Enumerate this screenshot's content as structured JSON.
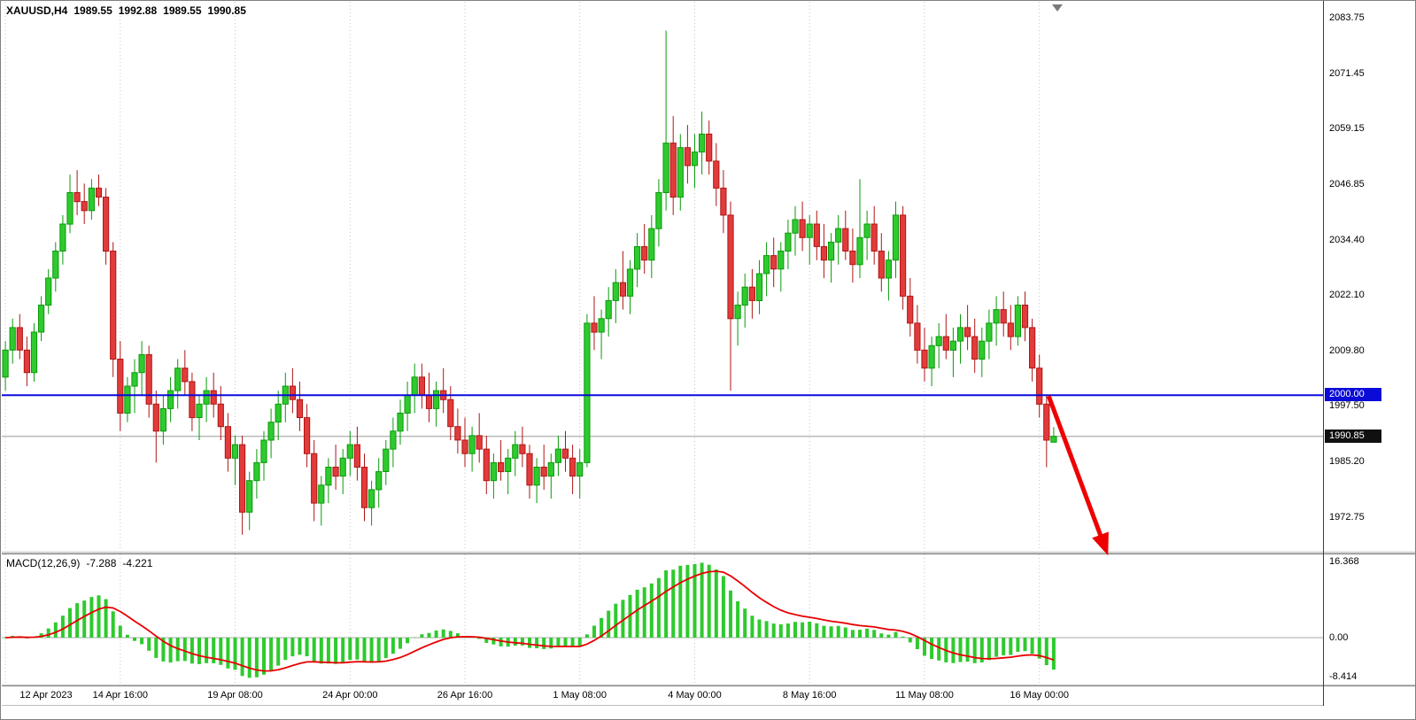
{
  "header": {
    "symbol": "XAUUSD,H4",
    "open": "1989.55",
    "high": "1992.88",
    "low": "1989.55",
    "close": "1990.85"
  },
  "macd_readout": {
    "label": "MACD(12,26,9)",
    "main": "-7.288",
    "signal": "-4.221"
  },
  "chart_data": [
    {
      "type": "candlestick",
      "symbol": "XAUUSD",
      "timeframe": "H4",
      "ylim": [
        1965.4,
        2087.4
      ],
      "y_tick_labels": [
        "2083.75",
        "2071.45",
        "2059.15",
        "2046.85",
        "2034.40",
        "2022.10",
        "2009.80",
        "1997.50",
        "1985.20",
        "1972.75"
      ],
      "x_tick_indices": [
        0,
        16,
        32,
        48,
        64,
        80,
        96,
        112,
        128,
        144
      ],
      "x_tick_labels": [
        "12 Apr 2023",
        "14 Apr 16:00",
        "19 Apr 08:00",
        "24 Apr 00:00",
        "26 Apr 16:00",
        "1 May 08:00",
        "4 May 00:00",
        "8 May 16:00",
        "11 May 08:00",
        "16 May 00:00"
      ],
      "visible_bar_slots": 184,
      "colors": {
        "up": "#2eca2e",
        "up_border": "#0a9a0a",
        "down": "#e23b3b",
        "down_border": "#b01515",
        "grid": "#c6c6c6"
      },
      "hline": {
        "value": 2000.0,
        "label": "2000.00",
        "color": "#0b0bd8"
      },
      "current_price": {
        "value": 1990.85,
        "label": "1990.85",
        "line_color": "#9a9a9a",
        "badge_color": "#101010"
      },
      "arrow": {
        "color": "#ee0000",
        "from": {
          "bar": 145.3,
          "price": 1999.8
        },
        "to": {
          "bar": 152.6,
          "price": 1968.5
        }
      },
      "candles": [
        [
          2004,
          2012,
          2001,
          2010
        ],
        [
          2010,
          2017,
          2007,
          2015
        ],
        [
          2015,
          2018,
          2008,
          2010
        ],
        [
          2010,
          2013,
          2002,
          2005
        ],
        [
          2005,
          2016,
          2003,
          2014
        ],
        [
          2014,
          2022,
          2012,
          2020
        ],
        [
          2020,
          2028,
          2018,
          2026
        ],
        [
          2026,
          2034,
          2023,
          2032
        ],
        [
          2032,
          2040,
          2029,
          2038
        ],
        [
          2038,
          2049,
          2036,
          2045
        ],
        [
          2045,
          2050,
          2040,
          2043
        ],
        [
          2043,
          2047,
          2038,
          2041
        ],
        [
          2041,
          2048,
          2039,
          2046
        ],
        [
          2046,
          2049,
          2042,
          2044
        ],
        [
          2044,
          2046,
          2029,
          2032
        ],
        [
          2032,
          2034,
          2004,
          2008
        ],
        [
          2008,
          2012,
          1992,
          1996
        ],
        [
          1996,
          2004,
          1994,
          2002
        ],
        [
          2002,
          2008,
          1996,
          2005
        ],
        [
          2005,
          2012,
          2000,
          2009
        ],
        [
          2009,
          2011,
          1995,
          1998
        ],
        [
          1998,
          2001,
          1985,
          1992
        ],
        [
          1992,
          2000,
          1989,
          1997
        ],
        [
          1997,
          2004,
          1994,
          2001
        ],
        [
          2001,
          2008,
          1997,
          2006
        ],
        [
          2006,
          2010,
          2000,
          2003
        ],
        [
          2003,
          2005,
          1992,
          1995
        ],
        [
          1995,
          2000,
          1990,
          1998
        ],
        [
          1998,
          2004,
          1994,
          2001
        ],
        [
          2001,
          2005,
          1995,
          1998
        ],
        [
          1998,
          2002,
          1990,
          1993
        ],
        [
          1993,
          1996,
          1983,
          1986
        ],
        [
          1986,
          1991,
          1980,
          1989
        ],
        [
          1989,
          1991,
          1969,
          1974
        ],
        [
          1974,
          1983,
          1970,
          1981
        ],
        [
          1981,
          1988,
          1977,
          1985
        ],
        [
          1985,
          1992,
          1981,
          1990
        ],
        [
          1990,
          1997,
          1986,
          1994
        ],
        [
          1994,
          2001,
          1990,
          1998
        ],
        [
          1998,
          2005,
          1994,
          2002
        ],
        [
          2002,
          2006,
          1996,
          1999
        ],
        [
          1999,
          2003,
          1992,
          1995
        ],
        [
          1995,
          1998,
          1984,
          1987
        ],
        [
          1987,
          1990,
          1972,
          1976
        ],
        [
          1976,
          1982,
          1971,
          1980
        ],
        [
          1980,
          1986,
          1976,
          1984
        ],
        [
          1984,
          1989,
          1979,
          1982
        ],
        [
          1982,
          1988,
          1978,
          1986
        ],
        [
          1986,
          1992,
          1982,
          1989
        ],
        [
          1989,
          1993,
          1981,
          1984
        ],
        [
          1984,
          1987,
          1972,
          1975
        ],
        [
          1975,
          1981,
          1971,
          1979
        ],
        [
          1979,
          1986,
          1975,
          1983
        ],
        [
          1983,
          1990,
          1980,
          1988
        ],
        [
          1988,
          1995,
          1984,
          1992
        ],
        [
          1992,
          1999,
          1989,
          1996
        ],
        [
          1996,
          2003,
          1992,
          2000
        ],
        [
          2000,
          2007,
          1996,
          2004
        ],
        [
          2004,
          2007,
          1997,
          2000
        ],
        [
          2000,
          2005,
          1994,
          1997
        ],
        [
          1997,
          2003,
          1993,
          2001
        ],
        [
          2001,
          2006,
          1996,
          1999
        ],
        [
          1999,
          2002,
          1990,
          1993
        ],
        [
          1993,
          1997,
          1987,
          1990
        ],
        [
          1990,
          1995,
          1984,
          1987
        ],
        [
          1987,
          1993,
          1983,
          1991
        ],
        [
          1991,
          1996,
          1985,
          1988
        ],
        [
          1988,
          1991,
          1978,
          1981
        ],
        [
          1981,
          1987,
          1977,
          1985
        ],
        [
          1985,
          1990,
          1981,
          1983
        ],
        [
          1983,
          1988,
          1978,
          1986
        ],
        [
          1986,
          1992,
          1982,
          1989
        ],
        [
          1989,
          1993,
          1984,
          1987
        ],
        [
          1987,
          1989,
          1977,
          1980
        ],
        [
          1980,
          1986,
          1976,
          1984
        ],
        [
          1984,
          1989,
          1979,
          1982
        ],
        [
          1982,
          1987,
          1977,
          1985
        ],
        [
          1985,
          1991,
          1982,
          1988
        ],
        [
          1988,
          1992,
          1983,
          1986
        ],
        [
          1986,
          1989,
          1978,
          1982
        ],
        [
          1982,
          1988,
          1977,
          1985
        ],
        [
          1985,
          2018,
          1984,
          2016
        ],
        [
          2016,
          2022,
          2010,
          2014
        ],
        [
          2014,
          2019,
          2008,
          2017
        ],
        [
          2017,
          2024,
          2013,
          2021
        ],
        [
          2021,
          2028,
          2016,
          2025
        ],
        [
          2025,
          2032,
          2019,
          2022
        ],
        [
          2022,
          2030,
          2018,
          2028
        ],
        [
          2028,
          2036,
          2024,
          2033
        ],
        [
          2033,
          2038,
          2027,
          2030
        ],
        [
          2030,
          2040,
          2026,
          2037
        ],
        [
          2037,
          2048,
          2033,
          2045
        ],
        [
          2045,
          2081,
          2041,
          2056
        ],
        [
          2056,
          2062,
          2040,
          2044
        ],
        [
          2044,
          2058,
          2041,
          2055
        ],
        [
          2055,
          2060,
          2047,
          2051
        ],
        [
          2051,
          2058,
          2046,
          2054
        ],
        [
          2054,
          2063,
          2049,
          2058
        ],
        [
          2058,
          2061,
          2049,
          2052
        ],
        [
          2052,
          2056,
          2042,
          2046
        ],
        [
          2046,
          2050,
          2036,
          2040
        ],
        [
          2040,
          2043,
          2001,
          2017
        ],
        [
          2017,
          2023,
          2011,
          2020
        ],
        [
          2020,
          2027,
          2015,
          2024
        ],
        [
          2024,
          2028,
          2017,
          2021
        ],
        [
          2021,
          2030,
          2018,
          2027
        ],
        [
          2027,
          2034,
          2022,
          2031
        ],
        [
          2031,
          2035,
          2024,
          2028
        ],
        [
          2028,
          2034,
          2023,
          2032
        ],
        [
          2032,
          2039,
          2028,
          2036
        ],
        [
          2036,
          2042,
          2031,
          2039
        ],
        [
          2039,
          2043,
          2032,
          2035
        ],
        [
          2035,
          2040,
          2029,
          2038
        ],
        [
          2038,
          2041,
          2030,
          2033
        ],
        [
          2033,
          2038,
          2026,
          2030
        ],
        [
          2030,
          2036,
          2025,
          2034
        ],
        [
          2034,
          2040,
          2029,
          2037
        ],
        [
          2037,
          2041,
          2030,
          2032
        ],
        [
          2032,
          2037,
          2025,
          2029
        ],
        [
          2029,
          2048,
          2026,
          2035
        ],
        [
          2035,
          2041,
          2030,
          2038
        ],
        [
          2038,
          2042,
          2029,
          2032
        ],
        [
          2032,
          2036,
          2023,
          2026
        ],
        [
          2026,
          2032,
          2021,
          2030
        ],
        [
          2030,
          2043,
          2026,
          2040
        ],
        [
          2040,
          2042,
          2019,
          2022
        ],
        [
          2022,
          2026,
          2013,
          2016
        ],
        [
          2016,
          2020,
          2007,
          2010
        ],
        [
          2010,
          2015,
          2003,
          2006
        ],
        [
          2006,
          2013,
          2002,
          2011
        ],
        [
          2011,
          2016,
          2006,
          2013
        ],
        [
          2013,
          2018,
          2008,
          2010
        ],
        [
          2010,
          2015,
          2004,
          2012
        ],
        [
          2012,
          2018,
          2007,
          2015
        ],
        [
          2015,
          2020,
          2010,
          2013
        ],
        [
          2013,
          2017,
          2005,
          2008
        ],
        [
          2008,
          2015,
          2004,
          2012
        ],
        [
          2012,
          2019,
          2008,
          2016
        ],
        [
          2016,
          2022,
          2011,
          2019
        ],
        [
          2019,
          2023,
          2013,
          2016
        ],
        [
          2016,
          2020,
          2010,
          2013
        ],
        [
          2013,
          2022,
          2011,
          2020
        ],
        [
          2020,
          2023,
          2012,
          2015
        ],
        [
          2015,
          2017,
          2003,
          2006
        ],
        [
          2006,
          2009,
          1995,
          1998
        ],
        [
          1998,
          2000,
          1984,
          1990
        ],
        [
          1989.55,
          1992.88,
          1989.55,
          1990.85
        ]
      ]
    },
    {
      "type": "macd",
      "params": [
        12,
        26,
        9
      ],
      "ylim": [
        -9.9,
        17.9
      ],
      "y_tick_labels": [
        "16.368",
        "0.00",
        "-8.414"
      ],
      "histogram_color": "#2eca2e",
      "signal_color": "#e80000",
      "readout_main": -7.288,
      "readout_signal": -4.221
    }
  ]
}
